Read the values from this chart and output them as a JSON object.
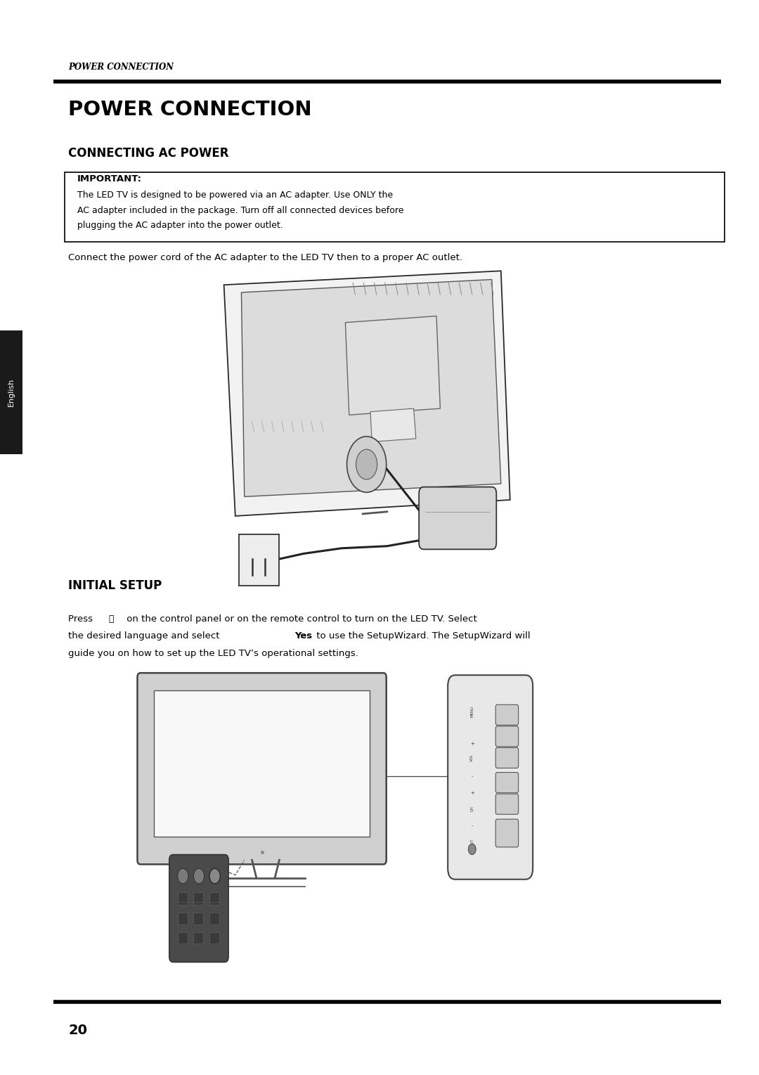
{
  "bg_color": "#ffffff",
  "page_width": 10.8,
  "page_height": 15.29,
  "header_italic": "POWER CONNECTION",
  "main_title": "POWER CONNECTION",
  "section1_title": "CONNECTING AC POWER",
  "important_label": "IMPORTANT:",
  "important_line1": "The LED TV is designed to be powered via an AC adapter. Use ONLY the",
  "important_line2": "AC adapter included in the package. Turn off all connected devices before",
  "important_line3": "plugging the AC adapter into the power outlet.",
  "connect_text": "Connect the power cord of the AC adapter to the LED TV then to a proper AC outlet.",
  "section2_title": "INITIAL SETUP",
  "setup_line1a": "Press ",
  "setup_line1b": " on the control panel or on the remote control to turn on the LED TV. Select",
  "setup_line2a": "the desired language and select ",
  "setup_line2b": "Yes",
  "setup_line2c": " to use the SetupWizard. The SetupWizard will",
  "setup_line3": "guide you on how to set up the LED TV’s operational settings.",
  "page_number": "20",
  "english_tab_text": "English",
  "english_tab_bg": "#1a1a1a",
  "english_tab_text_color": "#ffffff",
  "line_color": "#000000",
  "box_border_color": "#000000",
  "text_color": "#000000"
}
